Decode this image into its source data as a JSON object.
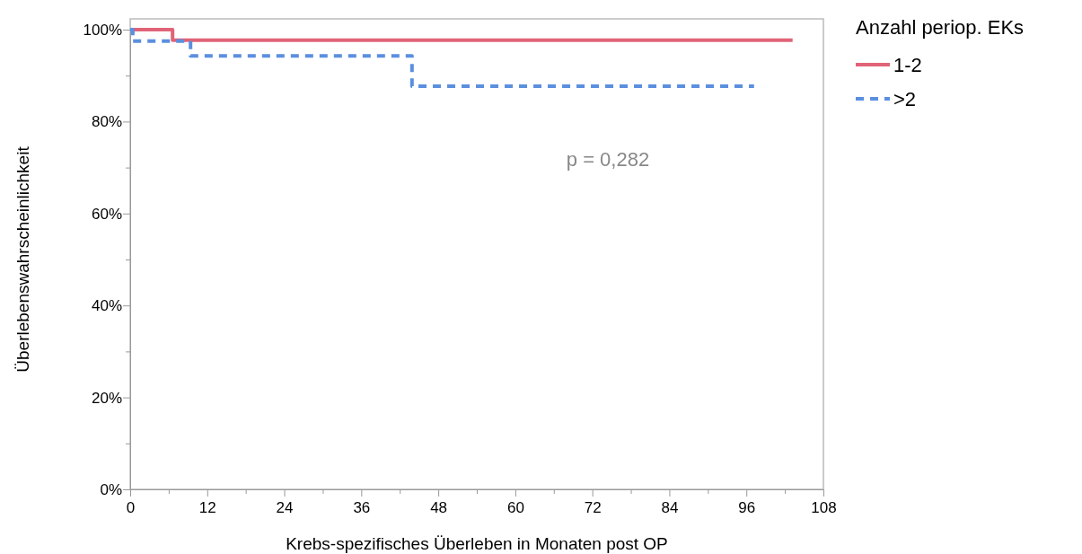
{
  "chart_data": {
    "type": "step",
    "xlabel": "Krebs-spezifisches Überleben in Monaten post OP",
    "ylabel": "Überlebenswahrscheinlichkeit",
    "legend_title": "Anzahl periop. EKs",
    "legend": "right",
    "grid": false,
    "annotations": [
      "p = 0,282"
    ],
    "xlim": [
      0,
      108
    ],
    "ylim": [
      0,
      100
    ],
    "xticks": [
      0,
      {
        "value": 6,
        "label": null
      },
      12,
      {
        "value": 18,
        "label": null
      },
      24,
      {
        "value": 30,
        "label": null
      },
      36,
      {
        "value": 42,
        "label": null
      },
      48,
      {
        "value": 54,
        "label": null
      },
      60,
      {
        "value": 66,
        "label": null
      },
      72,
      {
        "value": 78,
        "label": null
      },
      84,
      {
        "value": 90,
        "label": null
      },
      96,
      {
        "value": 102,
        "label": null
      },
      108
    ],
    "yticks": [
      {
        "value": 0,
        "label": "0%"
      },
      {
        "value": 10,
        "label": null
      },
      {
        "value": 20,
        "label": "20%"
      },
      {
        "value": 30,
        "label": null
      },
      {
        "value": 40,
        "label": "40%"
      },
      {
        "value": 50,
        "label": null
      },
      {
        "value": 60,
        "label": "60%"
      },
      {
        "value": 70,
        "label": null
      },
      {
        "value": 80,
        "label": "80%"
      },
      {
        "value": 90,
        "label": null
      },
      {
        "value": 100,
        "label": "100%"
      }
    ],
    "series": [
      {
        "name": "1-2",
        "color": "#e06377",
        "line_style": "solid",
        "x": [
          0,
          6.6,
          103.2
        ],
        "values": [
          100,
          97.7,
          97.7
        ]
      },
      {
        "name": ">2",
        "color": "#5b8fdf",
        "line_style": "dashed",
        "x": [
          0,
          0.4,
          9.4,
          43.9,
          97.2
        ],
        "values": [
          100,
          97.5,
          94.3,
          87.7,
          87.7
        ]
      }
    ]
  }
}
